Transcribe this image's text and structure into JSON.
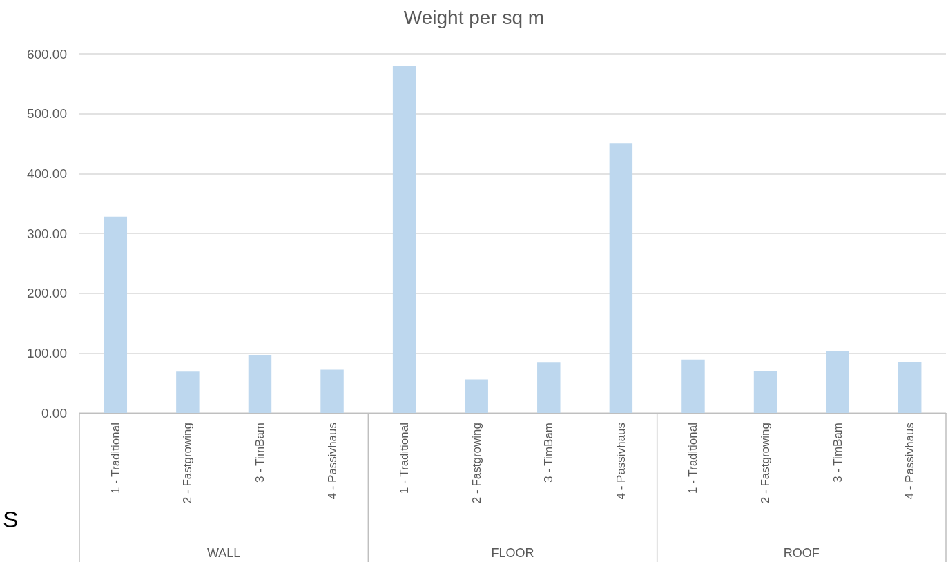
{
  "chart_data": {
    "type": "bar",
    "title": "Weight per sq m",
    "categories": [
      "1 - Traditional",
      "2 - Fastgrowing",
      "3 - TimBam",
      "4 - Passivhaus",
      "1 - Traditional",
      "2 - Fastgrowing",
      "3 - TimBam",
      "4 - Passivhaus",
      "1 - Traditional",
      "2 - Fastgrowing",
      "3 - TimBam",
      "4 - Passivhaus"
    ],
    "values": [
      328,
      69,
      97,
      72,
      580,
      56,
      84,
      451,
      89,
      70,
      103,
      85
    ],
    "color": "#bdd7ee",
    "ylim": [
      0,
      600
    ],
    "yticks": [
      {
        "value": 0,
        "label": "0.00"
      },
      {
        "value": 100,
        "label": "100.00"
      },
      {
        "value": 200,
        "label": "200.00"
      },
      {
        "value": 300,
        "label": "300.00"
      },
      {
        "value": 400,
        "label": "400.00"
      },
      {
        "value": 500,
        "label": "500.00"
      },
      {
        "value": 600,
        "label": "600.00"
      }
    ],
    "grid": "y",
    "annotations": [
      "WALL",
      "FLOOR",
      "ROOF",
      "S"
    ]
  }
}
